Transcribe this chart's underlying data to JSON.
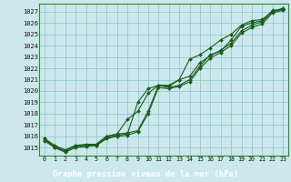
{
  "title": "Graphe pression niveau de la mer (hPa)",
  "bg_color": "#cce8ec",
  "plot_bg_color": "#cce8ec",
  "label_bg_color": "#4a7a5a",
  "grid_color": "#88c4cc",
  "line_color": "#1a5c1a",
  "marker_color": "#1a5c1a",
  "border_color": "#2d8c2d",
  "xlim": [
    -0.5,
    23.5
  ],
  "ylim": [
    1014.3,
    1027.7
  ],
  "xticks": [
    0,
    1,
    2,
    3,
    4,
    5,
    6,
    7,
    8,
    9,
    10,
    11,
    12,
    13,
    14,
    15,
    16,
    17,
    18,
    19,
    20,
    21,
    22,
    23
  ],
  "yticks": [
    1015,
    1016,
    1017,
    1018,
    1019,
    1020,
    1021,
    1022,
    1023,
    1024,
    1025,
    1026,
    1027
  ],
  "series": [
    [
      1015.8,
      1015.2,
      1014.8,
      1015.2,
      1015.3,
      1015.3,
      1016.0,
      1016.2,
      1016.3,
      1016.5,
      1018.2,
      1020.5,
      1020.3,
      1020.5,
      1021.0,
      1022.2,
      1023.2,
      1023.5,
      1024.5,
      1025.7,
      1026.0,
      1026.2,
      1027.1,
      1027.2
    ],
    [
      1015.8,
      1015.0,
      1014.7,
      1015.2,
      1015.2,
      1015.3,
      1016.0,
      1016.2,
      1017.5,
      1018.2,
      1019.8,
      1020.5,
      1020.5,
      1021.0,
      1022.8,
      1023.2,
      1023.8,
      1024.5,
      1025.0,
      1025.8,
      1026.2,
      1026.3,
      1027.0,
      1027.3
    ],
    [
      1015.7,
      1015.1,
      1014.7,
      1015.1,
      1015.2,
      1015.2,
      1015.9,
      1016.1,
      1016.2,
      1019.0,
      1020.2,
      1020.5,
      1020.4,
      1021.0,
      1021.3,
      1022.5,
      1023.1,
      1023.6,
      1024.2,
      1025.3,
      1025.8,
      1026.1,
      1027.0,
      1027.2
    ],
    [
      1015.6,
      1015.0,
      1014.6,
      1015.0,
      1015.1,
      1015.2,
      1015.8,
      1016.0,
      1016.1,
      1016.4,
      1018.0,
      1020.3,
      1020.2,
      1020.4,
      1020.8,
      1022.0,
      1022.9,
      1023.4,
      1024.0,
      1025.1,
      1025.6,
      1025.9,
      1026.9,
      1027.1
    ]
  ]
}
